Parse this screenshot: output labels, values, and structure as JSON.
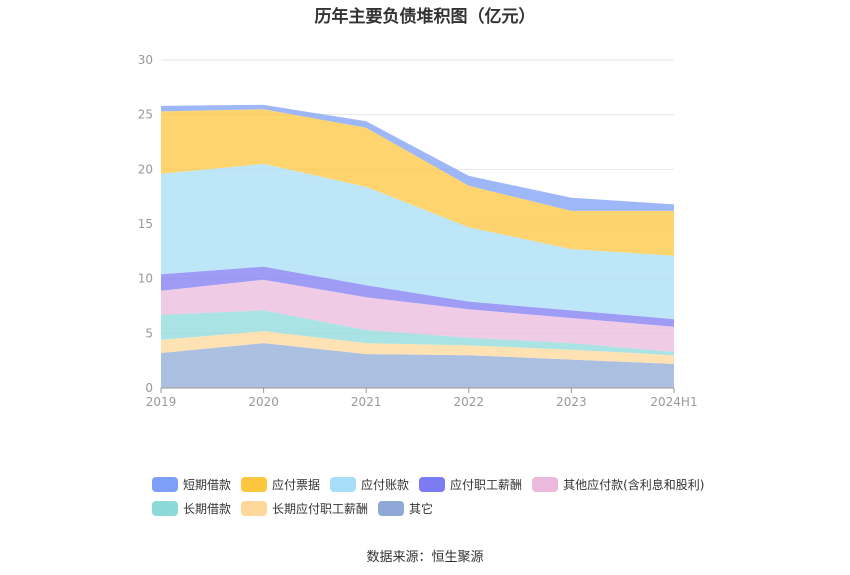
{
  "chart_data": {
    "type": "area",
    "stacked": true,
    "title": "历年主要负债堆积图（亿元）",
    "x": [
      "2019",
      "2020",
      "2021",
      "2022",
      "2023",
      "2024H1"
    ],
    "ylim": [
      0,
      30
    ],
    "yticks": [
      "0",
      "5",
      "10",
      "15",
      "20",
      "25",
      "30"
    ],
    "grid": true,
    "legend_position": "bottom",
    "series": [
      {
        "name": "其它",
        "color": "#8fa9d6",
        "values": [
          3.2,
          4.1,
          3.1,
          3.0,
          2.6,
          2.2
        ]
      },
      {
        "name": "长期应付职工薪酬",
        "color": "#fdd89a",
        "values": [
          1.2,
          1.1,
          1.0,
          0.9,
          0.9,
          0.8
        ]
      },
      {
        "name": "长期借款",
        "color": "#8cd9d9",
        "values": [
          2.3,
          1.9,
          1.2,
          0.7,
          0.6,
          0.3
        ]
      },
      {
        "name": "其他应付款(含利息和股利)",
        "color": "#ebb9dc",
        "values": [
          2.2,
          2.8,
          3.0,
          2.6,
          2.3,
          2.3
        ]
      },
      {
        "name": "应付职工薪酬",
        "color": "#7d7bf2",
        "values": [
          1.5,
          1.2,
          1.1,
          0.7,
          0.7,
          0.7
        ]
      },
      {
        "name": "应付账款",
        "color": "#a8def7",
        "values": [
          9.2,
          9.4,
          9.0,
          6.8,
          5.6,
          5.8
        ]
      },
      {
        "name": "应付票据",
        "color": "#fcc63e",
        "values": [
          5.7,
          5.0,
          5.4,
          3.8,
          3.5,
          4.1
        ]
      },
      {
        "name": "短期借款",
        "color": "#7d9ff7",
        "values": [
          0.5,
          0.4,
          0.6,
          0.9,
          1.2,
          0.6
        ]
      }
    ]
  },
  "legend": {
    "row1": [
      {
        "label": "短期借款",
        "color": "#7d9ff7"
      },
      {
        "label": "应付票据",
        "color": "#fcc63e"
      },
      {
        "label": "应付账款",
        "color": "#a8def7"
      },
      {
        "label": "应付职工薪酬",
        "color": "#7d7bf2"
      },
      {
        "label": "其他应付款(含利息和股利)",
        "color": "#ebb9dc"
      }
    ],
    "row2": [
      {
        "label": "长期借款",
        "color": "#8cd9d9"
      },
      {
        "label": "长期应付职工薪酬",
        "color": "#fdd89a"
      },
      {
        "label": "其它",
        "color": "#8fa9d6"
      }
    ]
  },
  "source": "数据来源：恒生聚源"
}
